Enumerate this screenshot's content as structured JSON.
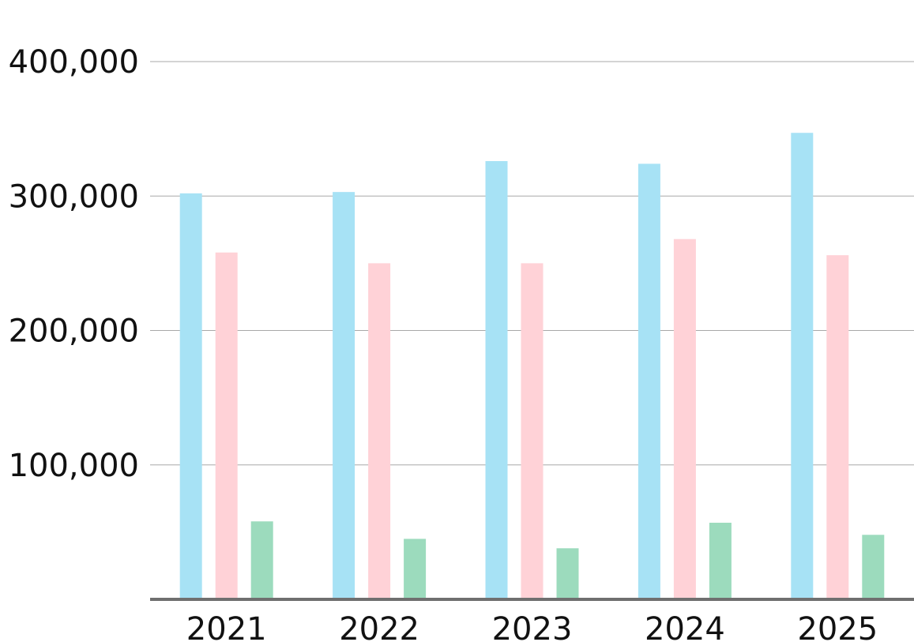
{
  "chart_data": {
    "type": "bar",
    "title": "",
    "xlabel": "",
    "ylabel": "",
    "categories": [
      "2021",
      "2022",
      "2023",
      "2024",
      "2025"
    ],
    "series": [
      {
        "color": "#a7e2f5",
        "values": [
          302000,
          303000,
          326000,
          324000,
          347000
        ]
      },
      {
        "color": "#ffd2d7",
        "values": [
          258000,
          250000,
          250000,
          268000,
          256000
        ]
      },
      {
        "color": "#9cdbbd",
        "values": [
          58000,
          45000,
          38000,
          57000,
          48000
        ]
      }
    ],
    "ylim": [
      0,
      400000
    ],
    "yticks": [
      100000,
      200000,
      300000,
      400000
    ],
    "ytick_labels": [
      "100,000",
      "200,000",
      "300,000",
      "400,000"
    ],
    "grid": true,
    "legend": "none"
  }
}
